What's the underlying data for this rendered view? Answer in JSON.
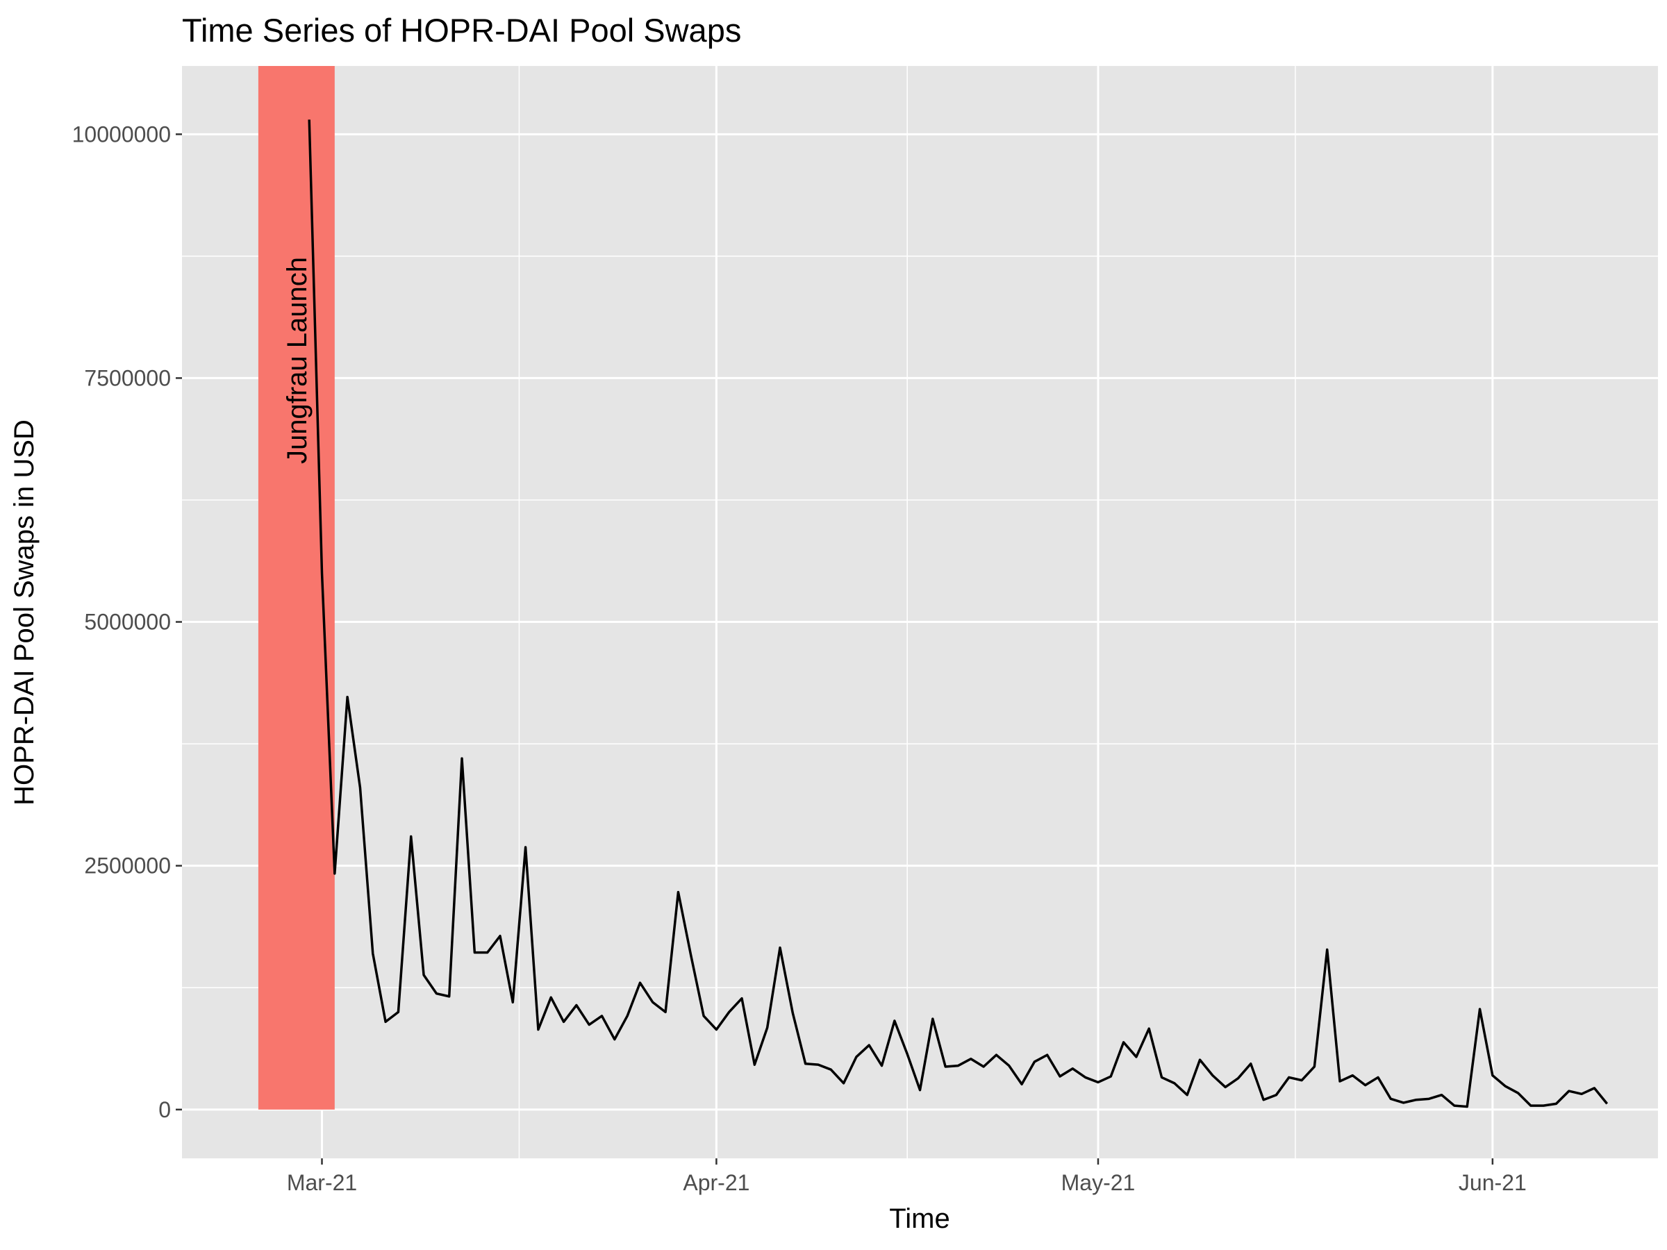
{
  "chart_data": {
    "type": "line",
    "title": "Time Series of HOPR-DAI Pool Swaps",
    "xlabel": "Time",
    "ylabel": "HOPR-DAI Pool Swaps in USD",
    "x_ticks": [
      {
        "date": "2021-03-01",
        "label": "Mar-21"
      },
      {
        "date": "2021-04-01",
        "label": "Apr-21"
      },
      {
        "date": "2021-05-01",
        "label": "May-21"
      },
      {
        "date": "2021-06-01",
        "label": "Jun-21"
      }
    ],
    "y_ticks": [
      0,
      2500000,
      5000000,
      7500000,
      10000000
    ],
    "xlim": [
      "2021-02-18",
      "2021-06-14"
    ],
    "ylim": [
      -500000,
      10700000
    ],
    "grid": true,
    "legend": "none",
    "colors": {
      "panel": "#e5e5e5",
      "grid": "#ffffff",
      "line": "#000000",
      "band": "#f8766d"
    },
    "annotation": {
      "text": "Jungfrau Launch",
      "from": "2021-02-24",
      "to": "2021-03-02"
    },
    "series": [
      {
        "x": [
          "2021-02-28",
          "2021-03-01",
          "2021-03-02",
          "2021-03-03",
          "2021-03-04",
          "2021-03-05",
          "2021-03-06",
          "2021-03-07",
          "2021-03-08",
          "2021-03-09",
          "2021-03-10",
          "2021-03-11",
          "2021-03-12",
          "2021-03-13",
          "2021-03-14",
          "2021-03-15",
          "2021-03-16",
          "2021-03-17",
          "2021-03-18",
          "2021-03-19",
          "2021-03-20",
          "2021-03-21",
          "2021-03-22",
          "2021-03-23",
          "2021-03-24",
          "2021-03-25",
          "2021-03-26",
          "2021-03-27",
          "2021-03-28",
          "2021-03-29",
          "2021-03-30",
          "2021-03-31",
          "2021-04-01",
          "2021-04-02",
          "2021-04-03",
          "2021-04-04",
          "2021-04-05",
          "2021-04-06",
          "2021-04-07",
          "2021-04-08",
          "2021-04-09",
          "2021-04-10",
          "2021-04-11",
          "2021-04-12",
          "2021-04-13",
          "2021-04-14",
          "2021-04-15",
          "2021-04-16",
          "2021-04-17",
          "2021-04-18",
          "2021-04-19",
          "2021-04-20",
          "2021-04-21",
          "2021-04-22",
          "2021-04-23",
          "2021-04-24",
          "2021-04-25",
          "2021-04-26",
          "2021-04-27",
          "2021-04-28",
          "2021-04-29",
          "2021-04-30",
          "2021-05-01",
          "2021-05-02",
          "2021-05-03",
          "2021-05-04",
          "2021-05-05",
          "2021-05-06",
          "2021-05-07",
          "2021-05-08",
          "2021-05-09",
          "2021-05-10",
          "2021-05-11",
          "2021-05-12",
          "2021-05-13",
          "2021-05-14",
          "2021-05-15",
          "2021-05-16",
          "2021-05-17",
          "2021-05-18",
          "2021-05-19",
          "2021-05-20",
          "2021-05-21",
          "2021-05-22",
          "2021-05-23",
          "2021-05-24",
          "2021-05-25",
          "2021-05-26",
          "2021-05-27",
          "2021-05-28",
          "2021-05-29",
          "2021-05-30",
          "2021-05-31",
          "2021-06-01",
          "2021-06-02",
          "2021-06-03",
          "2021-06-04",
          "2021-06-05",
          "2021-06-06",
          "2021-06-07",
          "2021-06-08",
          "2021-06-09",
          "2021-06-10"
        ],
        "y": [
          10150000,
          5500000,
          2420000,
          4230000,
          3300000,
          1600000,
          900000,
          1000000,
          2800000,
          1380000,
          1190000,
          1160000,
          3600000,
          1610000,
          1610000,
          1780000,
          1100000,
          2690000,
          820000,
          1150000,
          900000,
          1070000,
          870000,
          960000,
          720000,
          960000,
          1300000,
          1100000,
          1000000,
          2230000,
          1580000,
          960000,
          820000,
          1000000,
          1140000,
          460000,
          840000,
          1660000,
          990000,
          470000,
          460000,
          410000,
          270000,
          540000,
          660000,
          450000,
          910000,
          570000,
          200000,
          930000,
          440000,
          450000,
          520000,
          440000,
          560000,
          450000,
          260000,
          490000,
          560000,
          340000,
          420000,
          330000,
          280000,
          340000,
          690000,
          540000,
          830000,
          330000,
          270000,
          150000,
          510000,
          350000,
          230000,
          320000,
          470000,
          100000,
          150000,
          330000,
          300000,
          440000,
          1640000,
          290000,
          350000,
          250000,
          330000,
          110000,
          70000,
          100000,
          110000,
          150000,
          40000,
          30000,
          1030000,
          350000,
          240000,
          170000,
          40000,
          40000,
          60000,
          190000,
          160000,
          220000,
          60000
        ]
      }
    ]
  }
}
